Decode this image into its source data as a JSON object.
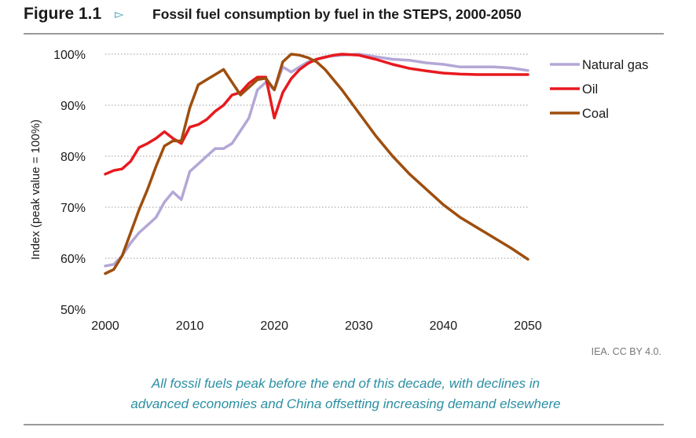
{
  "header": {
    "figure_label": "Figure 1.1",
    "title": "Fossil fuel consumption by fuel in the STEPS, 2000-2050"
  },
  "source": "IEA. CC BY 4.0.",
  "caption": {
    "line1": "All fossil fuels peak before the end of this decade, with declines in",
    "line2": "advanced economies and China offsetting increasing demand elsewhere"
  },
  "colors": {
    "accent": "#3a9bb0",
    "caption": "#2b8fa3"
  },
  "chart_data": {
    "type": "line",
    "title": "Fossil fuel consumption by fuel in the STEPS, 2000-2050",
    "xlabel": "",
    "ylabel": "Index (peak value = 100%)",
    "xlim": [
      2000,
      2050
    ],
    "ylim": [
      50,
      100
    ],
    "x_ticks": [
      2000,
      2010,
      2020,
      2030,
      2040,
      2050
    ],
    "y_ticks": [
      50,
      60,
      70,
      80,
      90,
      100
    ],
    "y_tick_labels": [
      "50%",
      "60%",
      "70%",
      "80%",
      "90%",
      "100%"
    ],
    "grid": "horizontal dotted",
    "legend": "right",
    "series": [
      {
        "name": "Natural gas",
        "color": "#b4a7d6",
        "x": [
          2000,
          2001,
          2002,
          2003,
          2004,
          2005,
          2006,
          2007,
          2008,
          2009,
          2010,
          2011,
          2012,
          2013,
          2014,
          2015,
          2016,
          2017,
          2018,
          2019,
          2020,
          2021,
          2022,
          2023,
          2024,
          2025,
          2026,
          2028,
          2030,
          2032,
          2034,
          2036,
          2038,
          2040,
          2042,
          2044,
          2046,
          2048,
          2050
        ],
        "values": [
          58.5,
          58.8,
          60.5,
          63,
          65,
          66.5,
          68,
          71,
          73,
          71.5,
          77,
          78.5,
          80,
          81.5,
          81.5,
          82.5,
          85,
          87.5,
          93,
          94.5,
          93,
          97.5,
          96.5,
          97.5,
          98.5,
          99,
          99.5,
          99.8,
          100,
          99.5,
          99,
          98.8,
          98.3,
          98,
          97.5,
          97.5,
          97.5,
          97.3,
          96.8
        ]
      },
      {
        "name": "Oil",
        "color": "#e8191f",
        "x": [
          2000,
          2001,
          2002,
          2003,
          2004,
          2005,
          2006,
          2007,
          2008,
          2009,
          2010,
          2011,
          2012,
          2013,
          2014,
          2015,
          2016,
          2017,
          2018,
          2019,
          2020,
          2021,
          2022,
          2023,
          2024,
          2025,
          2026,
          2027,
          2028,
          2030,
          2032,
          2034,
          2036,
          2038,
          2040,
          2042,
          2044,
          2046,
          2048,
          2050
        ],
        "values": [
          76.5,
          77.2,
          77.5,
          79,
          81.7,
          82.5,
          83.5,
          84.8,
          83.5,
          82.5,
          85.7,
          86.2,
          87.2,
          88.8,
          90,
          92,
          92.5,
          94.3,
          95.5,
          95.5,
          87.5,
          92.5,
          95.2,
          97,
          98.2,
          99,
          99.4,
          99.8,
          100,
          99.8,
          99,
          98,
          97.2,
          96.7,
          96.3,
          96.1,
          96,
          96,
          96,
          96
        ]
      },
      {
        "name": "Coal",
        "color": "#9e4e0e",
        "x": [
          2000,
          2001,
          2002,
          2003,
          2004,
          2005,
          2006,
          2007,
          2008,
          2009,
          2010,
          2011,
          2012,
          2013,
          2014,
          2015,
          2016,
          2017,
          2018,
          2019,
          2020,
          2021,
          2022,
          2023,
          2024,
          2025,
          2026,
          2028,
          2030,
          2032,
          2034,
          2036,
          2038,
          2040,
          2042,
          2044,
          2046,
          2048,
          2050
        ],
        "values": [
          57,
          57.8,
          60.5,
          65,
          69.5,
          73.5,
          78,
          82,
          83,
          83,
          89.5,
          94,
          95,
          96,
          97,
          94.5,
          92,
          93.5,
          95,
          95.3,
          93,
          98.5,
          100,
          99.8,
          99.3,
          98.5,
          97,
          93,
          88.5,
          84,
          80,
          76.5,
          73.5,
          70.5,
          68,
          66,
          64,
          62,
          59.8
        ]
      }
    ]
  }
}
